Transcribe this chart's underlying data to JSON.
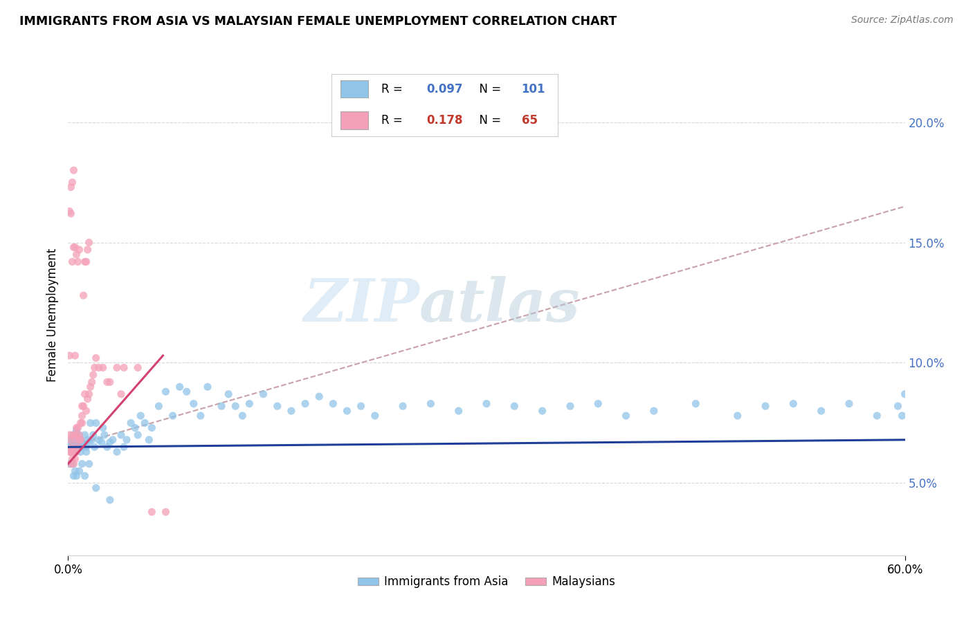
{
  "title": "IMMIGRANTS FROM ASIA VS MALAYSIAN FEMALE UNEMPLOYMENT CORRELATION CHART",
  "source": "Source: ZipAtlas.com",
  "ylabel": "Female Unemployment",
  "right_yticks": [
    "5.0%",
    "10.0%",
    "15.0%",
    "20.0%"
  ],
  "right_ytick_vals": [
    0.05,
    0.1,
    0.15,
    0.2
  ],
  "watermark_left": "ZIP",
  "watermark_right": "atlas",
  "legend_blue_r": "0.097",
  "legend_blue_n": "101",
  "legend_pink_r": "0.178",
  "legend_pink_n": "65",
  "blue_color": "#90c4e8",
  "pink_color": "#f4a0b8",
  "blue_line_color": "#1f3d99",
  "pink_line_color": "#d44070",
  "dashed_line_color": "#c8a0a8",
  "xlim": [
    0.0,
    0.6
  ],
  "ylim": [
    0.02,
    0.22
  ],
  "blue_scatter_x": [
    0.001,
    0.002,
    0.003,
    0.003,
    0.004,
    0.004,
    0.005,
    0.005,
    0.006,
    0.006,
    0.007,
    0.007,
    0.008,
    0.008,
    0.009,
    0.009,
    0.01,
    0.01,
    0.011,
    0.012,
    0.013,
    0.013,
    0.014,
    0.015,
    0.016,
    0.017,
    0.018,
    0.019,
    0.02,
    0.022,
    0.024,
    0.025,
    0.026,
    0.028,
    0.03,
    0.032,
    0.035,
    0.038,
    0.04,
    0.042,
    0.045,
    0.048,
    0.05,
    0.052,
    0.055,
    0.058,
    0.06,
    0.065,
    0.07,
    0.075,
    0.08,
    0.085,
    0.09,
    0.095,
    0.1,
    0.11,
    0.115,
    0.12,
    0.125,
    0.13,
    0.14,
    0.15,
    0.16,
    0.17,
    0.18,
    0.19,
    0.2,
    0.21,
    0.22,
    0.24,
    0.26,
    0.28,
    0.3,
    0.32,
    0.34,
    0.36,
    0.38,
    0.4,
    0.42,
    0.45,
    0.48,
    0.5,
    0.52,
    0.54,
    0.56,
    0.58,
    0.595,
    0.598,
    0.6,
    0.001,
    0.002,
    0.003,
    0.004,
    0.005,
    0.006,
    0.008,
    0.01,
    0.012,
    0.015,
    0.02,
    0.03
  ],
  "blue_scatter_y": [
    0.065,
    0.067,
    0.068,
    0.063,
    0.07,
    0.065,
    0.068,
    0.063,
    0.072,
    0.067,
    0.066,
    0.064,
    0.07,
    0.065,
    0.068,
    0.063,
    0.067,
    0.065,
    0.066,
    0.07,
    0.065,
    0.063,
    0.068,
    0.067,
    0.075,
    0.068,
    0.07,
    0.065,
    0.075,
    0.068,
    0.067,
    0.073,
    0.07,
    0.065,
    0.067,
    0.068,
    0.063,
    0.07,
    0.065,
    0.068,
    0.075,
    0.073,
    0.07,
    0.078,
    0.075,
    0.068,
    0.073,
    0.082,
    0.088,
    0.078,
    0.09,
    0.088,
    0.083,
    0.078,
    0.09,
    0.082,
    0.087,
    0.082,
    0.078,
    0.083,
    0.087,
    0.082,
    0.08,
    0.083,
    0.086,
    0.083,
    0.08,
    0.082,
    0.078,
    0.082,
    0.083,
    0.08,
    0.083,
    0.082,
    0.08,
    0.082,
    0.083,
    0.078,
    0.08,
    0.083,
    0.078,
    0.082,
    0.083,
    0.08,
    0.083,
    0.078,
    0.082,
    0.078,
    0.087,
    0.058,
    0.058,
    0.058,
    0.053,
    0.055,
    0.053,
    0.055,
    0.058,
    0.053,
    0.058,
    0.048,
    0.043
  ],
  "pink_scatter_x": [
    0.001,
    0.001,
    0.002,
    0.002,
    0.003,
    0.003,
    0.004,
    0.004,
    0.005,
    0.005,
    0.006,
    0.006,
    0.007,
    0.008,
    0.009,
    0.01,
    0.01,
    0.011,
    0.012,
    0.013,
    0.014,
    0.015,
    0.016,
    0.017,
    0.018,
    0.019,
    0.02,
    0.022,
    0.025,
    0.028,
    0.03,
    0.035,
    0.038,
    0.04,
    0.05,
    0.06,
    0.07,
    0.001,
    0.002,
    0.003,
    0.004,
    0.005,
    0.006,
    0.007,
    0.008,
    0.009,
    0.01,
    0.011,
    0.012,
    0.013,
    0.014,
    0.015,
    0.001,
    0.002,
    0.003,
    0.004,
    0.005,
    0.006,
    0.007,
    0.008,
    0.001,
    0.002,
    0.003,
    0.004,
    0.005
  ],
  "pink_scatter_y": [
    0.068,
    0.063,
    0.063,
    0.058,
    0.065,
    0.06,
    0.063,
    0.058,
    0.068,
    0.06,
    0.07,
    0.063,
    0.073,
    0.068,
    0.075,
    0.082,
    0.078,
    0.082,
    0.087,
    0.08,
    0.085,
    0.087,
    0.09,
    0.092,
    0.095,
    0.098,
    0.102,
    0.098,
    0.098,
    0.092,
    0.092,
    0.098,
    0.087,
    0.098,
    0.098,
    0.038,
    0.038,
    0.07,
    0.063,
    0.07,
    0.063,
    0.07,
    0.073,
    0.065,
    0.07,
    0.068,
    0.075,
    0.128,
    0.142,
    0.142,
    0.147,
    0.15,
    0.163,
    0.173,
    0.142,
    0.148,
    0.148,
    0.145,
    0.142,
    0.147,
    0.103,
    0.162,
    0.175,
    0.18,
    0.103
  ],
  "blue_trend_x": [
    0.0,
    0.6
  ],
  "blue_trend_y": [
    0.065,
    0.068
  ],
  "pink_trend_x": [
    0.0,
    0.068
  ],
  "pink_trend_y": [
    0.058,
    0.103
  ],
  "dashed_trend_x": [
    0.0,
    0.6
  ],
  "dashed_trend_y": [
    0.065,
    0.165
  ]
}
